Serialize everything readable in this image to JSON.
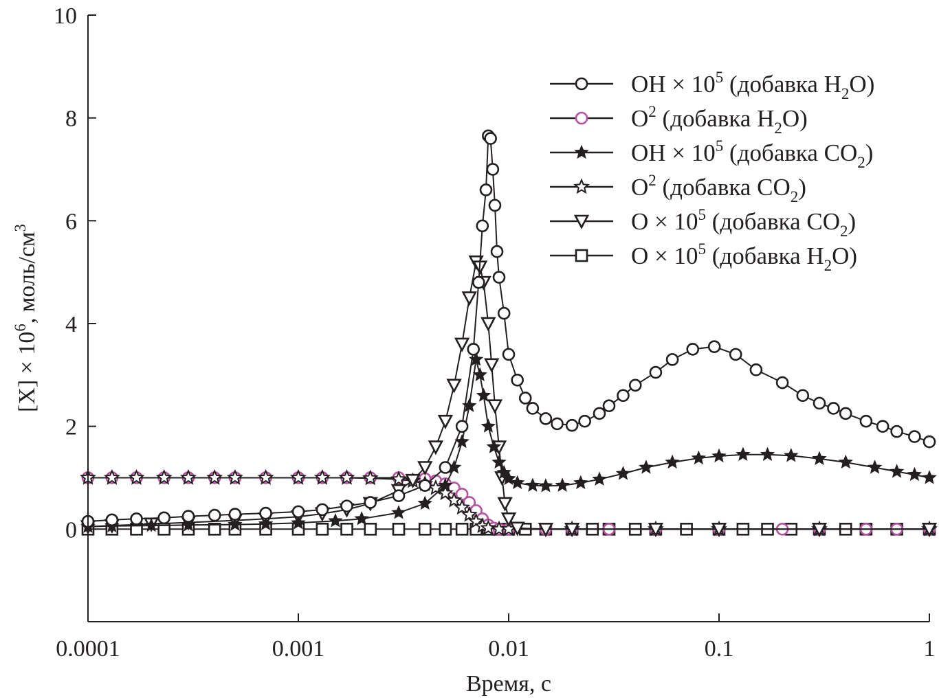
{
  "chart_data": {
    "type": "line",
    "xscale": "log",
    "xlim": [
      0.0001,
      1
    ],
    "ylim": [
      -1.8,
      10
    ],
    "xlabel": "Время, с",
    "ylabel": {
      "pre": "[X] × 10",
      "sup": "6",
      "post": ", моль/см",
      "sup2": "3"
    },
    "xticks": [
      {
        "v": 0.0001,
        "label": "0.0001"
      },
      {
        "v": 0.001,
        "label": "0.001"
      },
      {
        "v": 0.01,
        "label": "0.01"
      },
      {
        "v": 0.1,
        "label": "0.1"
      },
      {
        "v": 1,
        "label": "1"
      }
    ],
    "yticks": [
      {
        "v": 0,
        "label": "0"
      },
      {
        "v": 2,
        "label": "2"
      },
      {
        "v": 4,
        "label": "4"
      },
      {
        "v": 6,
        "label": "6"
      },
      {
        "v": 8,
        "label": "8"
      },
      {
        "v": 10,
        "label": "10"
      }
    ],
    "legend_position": "top-right",
    "series": [
      {
        "name": "OH × 10^5 (добавка H2O)",
        "label": {
          "pre": "OH × 10",
          "sup": "5",
          "mid": " (добавка H",
          "sub": "2",
          "post": "O)"
        },
        "marker": "circle-open",
        "color": "#231f20",
        "x": [
          0.0001,
          0.00013,
          0.00017,
          0.00023,
          0.0003,
          0.0004,
          0.0005,
          0.0007,
          0.001,
          0.0013,
          0.0017,
          0.0022,
          0.003,
          0.004,
          0.005,
          0.006,
          0.0068,
          0.0072,
          0.0075,
          0.0078,
          0.008,
          0.0082,
          0.0084,
          0.0086,
          0.0088,
          0.009,
          0.0095,
          0.01,
          0.011,
          0.012,
          0.013,
          0.015,
          0.017,
          0.02,
          0.023,
          0.027,
          0.03,
          0.035,
          0.04,
          0.05,
          0.06,
          0.075,
          0.095,
          0.12,
          0.15,
          0.2,
          0.25,
          0.3,
          0.35,
          0.4,
          0.5,
          0.6,
          0.7,
          0.85,
          1.0
        ],
        "y": [
          0.15,
          0.18,
          0.2,
          0.22,
          0.25,
          0.27,
          0.29,
          0.31,
          0.34,
          0.38,
          0.45,
          0.52,
          0.65,
          0.85,
          1.2,
          2.0,
          3.5,
          4.8,
          5.9,
          6.6,
          7.65,
          7.6,
          7.0,
          6.3,
          5.4,
          4.9,
          4.2,
          3.4,
          2.9,
          2.55,
          2.35,
          2.15,
          2.05,
          2.02,
          2.1,
          2.25,
          2.4,
          2.6,
          2.8,
          3.05,
          3.3,
          3.5,
          3.55,
          3.4,
          3.1,
          2.85,
          2.6,
          2.45,
          2.35,
          2.25,
          2.1,
          2.0,
          1.9,
          1.8,
          1.7
        ]
      },
      {
        "name": "O2 (добавка H2O)",
        "label": {
          "pre": "O",
          "sup": "2",
          "mid": " (добавка H",
          "sub": "2",
          "post": "O)"
        },
        "marker": "circle-open",
        "color": "#b5519f",
        "x": [
          0.0001,
          0.00013,
          0.00017,
          0.00023,
          0.0003,
          0.0004,
          0.0005,
          0.0007,
          0.001,
          0.0013,
          0.0017,
          0.0022,
          0.003,
          0.004,
          0.0045,
          0.005,
          0.0055,
          0.006,
          0.0065,
          0.007,
          0.0075,
          0.008,
          0.0085,
          0.009,
          0.01,
          0.015,
          0.02,
          0.03,
          0.05,
          0.1,
          0.2,
          0.3,
          0.5,
          0.7,
          1.0
        ],
        "y": [
          1.0,
          1.0,
          1.0,
          1.0,
          1.0,
          1.0,
          1.0,
          1.0,
          1.0,
          1.0,
          1.0,
          1.0,
          1.0,
          0.98,
          0.94,
          0.88,
          0.8,
          0.68,
          0.52,
          0.36,
          0.2,
          0.08,
          0.02,
          0.0,
          0.0,
          0.0,
          0.0,
          0.0,
          0.0,
          0.0,
          0.0,
          0.0,
          0.0,
          0.0,
          0.0
        ]
      },
      {
        "name": "OH × 10^5 (добавка CO2)",
        "label": {
          "pre": "OH × 10",
          "sup": "5",
          "mid": " (добавка CO",
          "sub": "2",
          "post": ")"
        },
        "marker": "star-filled",
        "color": "#231f20",
        "x": [
          0.0001,
          0.00013,
          0.0002,
          0.0003,
          0.0005,
          0.0007,
          0.001,
          0.0015,
          0.002,
          0.003,
          0.004,
          0.005,
          0.0055,
          0.006,
          0.0065,
          0.007,
          0.0073,
          0.0076,
          0.008,
          0.0085,
          0.009,
          0.0095,
          0.01,
          0.011,
          0.013,
          0.015,
          0.018,
          0.022,
          0.027,
          0.035,
          0.045,
          0.06,
          0.08,
          0.1,
          0.13,
          0.17,
          0.22,
          0.3,
          0.4,
          0.55,
          0.7,
          0.85,
          1.0
        ],
        "y": [
          0.05,
          0.06,
          0.07,
          0.08,
          0.09,
          0.1,
          0.12,
          0.16,
          0.2,
          0.32,
          0.5,
          0.85,
          1.2,
          1.7,
          2.4,
          3.3,
          3.0,
          2.6,
          2.0,
          1.6,
          1.3,
          1.1,
          0.98,
          0.9,
          0.85,
          0.84,
          0.85,
          0.9,
          0.97,
          1.08,
          1.2,
          1.3,
          1.38,
          1.42,
          1.45,
          1.45,
          1.43,
          1.37,
          1.3,
          1.2,
          1.12,
          1.06,
          1.0
        ]
      },
      {
        "name": "O2 (добавка CO2)",
        "label": {
          "pre": "O",
          "sup": "2",
          "mid": " (добавка CO",
          "sub": "2",
          "post": ")"
        },
        "marker": "star-open",
        "color": "#231f20",
        "x": [
          0.0001,
          0.00013,
          0.00017,
          0.00023,
          0.0003,
          0.0004,
          0.0005,
          0.0007,
          0.001,
          0.0013,
          0.0017,
          0.0022,
          0.003,
          0.0035,
          0.004,
          0.0045,
          0.005,
          0.0055,
          0.006,
          0.0065,
          0.007,
          0.0075,
          0.008,
          0.009,
          0.01,
          0.02,
          0.05,
          0.1,
          0.3,
          1.0
        ],
        "y": [
          1.0,
          1.0,
          1.0,
          1.0,
          1.0,
          1.0,
          1.0,
          1.0,
          1.0,
          1.0,
          1.0,
          0.99,
          0.97,
          0.94,
          0.88,
          0.8,
          0.7,
          0.56,
          0.42,
          0.28,
          0.15,
          0.06,
          0.02,
          0.0,
          0.0,
          0.0,
          0.0,
          0.0,
          0.0,
          0.0
        ]
      },
      {
        "name": "O × 10^5 (добавка CO2)",
        "label": {
          "pre": "O × 10",
          "sup": "5",
          "mid": " (добавка CO",
          "sub": "2",
          "post": ")"
        },
        "marker": "triangle-down-open",
        "color": "#231f20",
        "x": [
          0.0001,
          0.00013,
          0.0002,
          0.0003,
          0.0005,
          0.0007,
          0.001,
          0.0013,
          0.0017,
          0.0022,
          0.003,
          0.0035,
          0.004,
          0.0045,
          0.005,
          0.0055,
          0.006,
          0.0065,
          0.007,
          0.0073,
          0.0076,
          0.008,
          0.0083,
          0.0086,
          0.009,
          0.0093,
          0.0096,
          0.01,
          0.011,
          0.015,
          0.02,
          0.05,
          0.1,
          0.3,
          1.0
        ],
        "y": [
          0.05,
          0.07,
          0.1,
          0.13,
          0.17,
          0.2,
          0.24,
          0.3,
          0.38,
          0.5,
          0.75,
          0.95,
          1.2,
          1.6,
          2.1,
          2.8,
          3.6,
          4.5,
          5.2,
          5.1,
          4.8,
          4.0,
          3.2,
          2.4,
          1.6,
          1.0,
          0.5,
          0.2,
          0.02,
          0.0,
          0.0,
          0.0,
          0.0,
          0.0,
          0.0
        ]
      },
      {
        "name": "O × 10^5 (добавка H2O)",
        "label": {
          "pre": "O × 10",
          "sup": "5",
          "mid": " (добавка H",
          "sub": "2",
          "post": "O)"
        },
        "marker": "square-open",
        "color": "#231f20",
        "x": [
          0.0001,
          0.00013,
          0.00017,
          0.00023,
          0.0003,
          0.0004,
          0.0005,
          0.0007,
          0.001,
          0.0013,
          0.0017,
          0.0022,
          0.003,
          0.004,
          0.005,
          0.006,
          0.007,
          0.008,
          0.009,
          0.01,
          0.012,
          0.015,
          0.02,
          0.025,
          0.03,
          0.04,
          0.05,
          0.07,
          0.1,
          0.13,
          0.17,
          0.22,
          0.3,
          0.4,
          0.5,
          0.7,
          1.0
        ],
        "y": [
          0.0,
          0.0,
          0.0,
          0.0,
          0.0,
          0.0,
          0.0,
          0.0,
          0.0,
          0.0,
          0.0,
          0.0,
          0.0,
          0.0,
          0.0,
          0.0,
          0.0,
          0.0,
          0.0,
          0.0,
          0.0,
          0.0,
          0.0,
          0.0,
          0.0,
          0.0,
          0.0,
          0.0,
          0.0,
          0.0,
          0.0,
          0.0,
          0.0,
          0.0,
          0.0,
          0.0,
          0.0
        ]
      }
    ]
  }
}
